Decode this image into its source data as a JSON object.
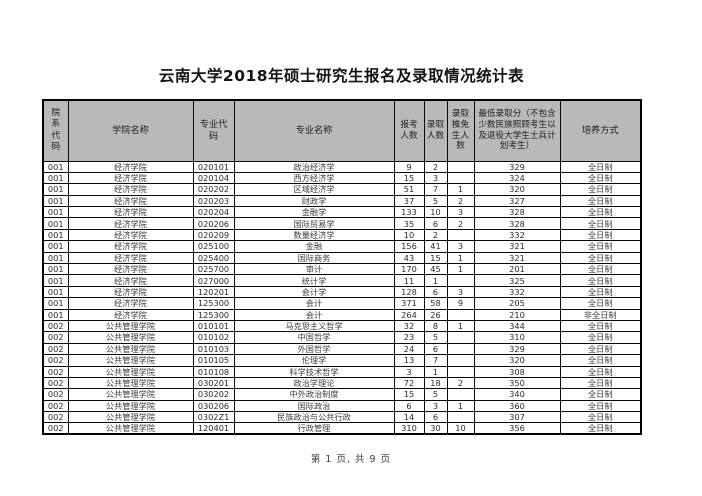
{
  "title": "云南大学2018年硕士研究生报名及录取情况统计表",
  "footer": {
    "page_text": "第 1 页, 共 9 页"
  },
  "table": {
    "columns": [
      {
        "key": "dept_code",
        "label": "院系代码"
      },
      {
        "key": "college",
        "label": "学院名称"
      },
      {
        "key": "major_code",
        "label": "专业代码"
      },
      {
        "key": "major_name",
        "label": "专业名称"
      },
      {
        "key": "applicants",
        "label": "报考人数"
      },
      {
        "key": "admitted",
        "label": "录取人数"
      },
      {
        "key": "exempt",
        "label": "录取推免生人数"
      },
      {
        "key": "min_score",
        "label": "最低录取分（不包含少数民族照顾考生以及退役大学生士兵计划考生）"
      },
      {
        "key": "mode",
        "label": "培养方式"
      }
    ],
    "rows": [
      [
        "001",
        "经济学院",
        "020101",
        "政治经济学",
        "9",
        "2",
        "",
        "329",
        "全日制"
      ],
      [
        "001",
        "经济学院",
        "020104",
        "西方经济学",
        "15",
        "3",
        "",
        "324",
        "全日制"
      ],
      [
        "001",
        "经济学院",
        "020202",
        "区域经济学",
        "51",
        "7",
        "1",
        "320",
        "全日制"
      ],
      [
        "001",
        "经济学院",
        "020203",
        "财政学",
        "37",
        "5",
        "2",
        "327",
        "全日制"
      ],
      [
        "001",
        "经济学院",
        "020204",
        "金融学",
        "133",
        "10",
        "3",
        "328",
        "全日制"
      ],
      [
        "001",
        "经济学院",
        "020206",
        "国际贸易学",
        "35",
        "6",
        "2",
        "328",
        "全日制"
      ],
      [
        "001",
        "经济学院",
        "020209",
        "数量经济学",
        "10",
        "2",
        "",
        "332",
        "全日制"
      ],
      [
        "001",
        "经济学院",
        "025100",
        "金融",
        "156",
        "41",
        "3",
        "321",
        "全日制"
      ],
      [
        "001",
        "经济学院",
        "025400",
        "国际商务",
        "43",
        "15",
        "1",
        "321",
        "全日制"
      ],
      [
        "001",
        "经济学院",
        "025700",
        "审计",
        "170",
        "45",
        "1",
        "201",
        "全日制"
      ],
      [
        "001",
        "经济学院",
        "027000",
        "统计学",
        "11",
        "1",
        "",
        "325",
        "全日制"
      ],
      [
        "001",
        "经济学院",
        "120201",
        "会计学",
        "128",
        "6",
        "3",
        "332",
        "全日制"
      ],
      [
        "001",
        "经济学院",
        "125300",
        "会计",
        "371",
        "58",
        "9",
        "205",
        "全日制"
      ],
      [
        "001",
        "经济学院",
        "125300",
        "会计",
        "264",
        "26",
        "",
        "210",
        "非全日制"
      ],
      [
        "002",
        "公共管理学院",
        "010101",
        "马克思主义哲学",
        "32",
        "8",
        "1",
        "344",
        "全日制"
      ],
      [
        "002",
        "公共管理学院",
        "010102",
        "中国哲学",
        "23",
        "5",
        "",
        "310",
        "全日制"
      ],
      [
        "002",
        "公共管理学院",
        "010103",
        "外国哲学",
        "24",
        "6",
        "",
        "329",
        "全日制"
      ],
      [
        "002",
        "公共管理学院",
        "010105",
        "伦理学",
        "13",
        "7",
        "",
        "320",
        "全日制"
      ],
      [
        "002",
        "公共管理学院",
        "010108",
        "科学技术哲学",
        "3",
        "1",
        "",
        "308",
        "全日制"
      ],
      [
        "002",
        "公共管理学院",
        "030201",
        "政治学理论",
        "72",
        "18",
        "2",
        "350",
        "全日制"
      ],
      [
        "002",
        "公共管理学院",
        "030202",
        "中外政治制度",
        "15",
        "5",
        "",
        "340",
        "全日制"
      ],
      [
        "002",
        "公共管理学院",
        "030206",
        "国际政治",
        "6",
        "3",
        "1",
        "360",
        "全日制"
      ],
      [
        "002",
        "公共管理学院",
        "0302Z1",
        "民族政治与公共行政",
        "14",
        "6",
        "",
        "307",
        "全日制"
      ],
      [
        "002",
        "公共管理学院",
        "120401",
        "行政管理",
        "310",
        "30",
        "10",
        "356",
        "全日制"
      ]
    ]
  }
}
